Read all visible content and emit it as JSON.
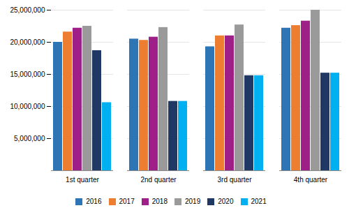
{
  "chart_data": {
    "type": "bar",
    "categories": [
      "1st quarter",
      "2nd quarter",
      "3rd quarter",
      "4th quarter"
    ],
    "series": [
      {
        "name": "2016",
        "color": "#2e75b6",
        "values": [
          20000000,
          20500000,
          19300000,
          22200000
        ]
      },
      {
        "name": "2017",
        "color": "#ed7d31",
        "values": [
          21600000,
          20300000,
          21000000,
          22600000
        ]
      },
      {
        "name": "2018",
        "color": "#9e1f88",
        "values": [
          22200000,
          20800000,
          21000000,
          23300000
        ]
      },
      {
        "name": "2019",
        "color": "#9a9a9a",
        "values": [
          22500000,
          22300000,
          22700000,
          25000000
        ]
      },
      {
        "name": "2020",
        "color": "#203864",
        "values": [
          18700000,
          10800000,
          14800000,
          15200000
        ]
      },
      {
        "name": "2021",
        "color": "#00b0f0",
        "values": [
          10600000,
          10800000,
          14800000,
          15200000
        ]
      }
    ],
    "ylim": [
      0,
      25000000
    ],
    "yticks": [
      {
        "value": 5000000,
        "label": "5,000,000"
      },
      {
        "value": 10000000,
        "label": "10,000,000"
      },
      {
        "value": 15000000,
        "label": "15,000,000"
      },
      {
        "value": 20000000,
        "label": "20,000,000"
      },
      {
        "value": 25000000,
        "label": "25,000,000"
      }
    ],
    "grid": true,
    "legend": "bottom"
  }
}
